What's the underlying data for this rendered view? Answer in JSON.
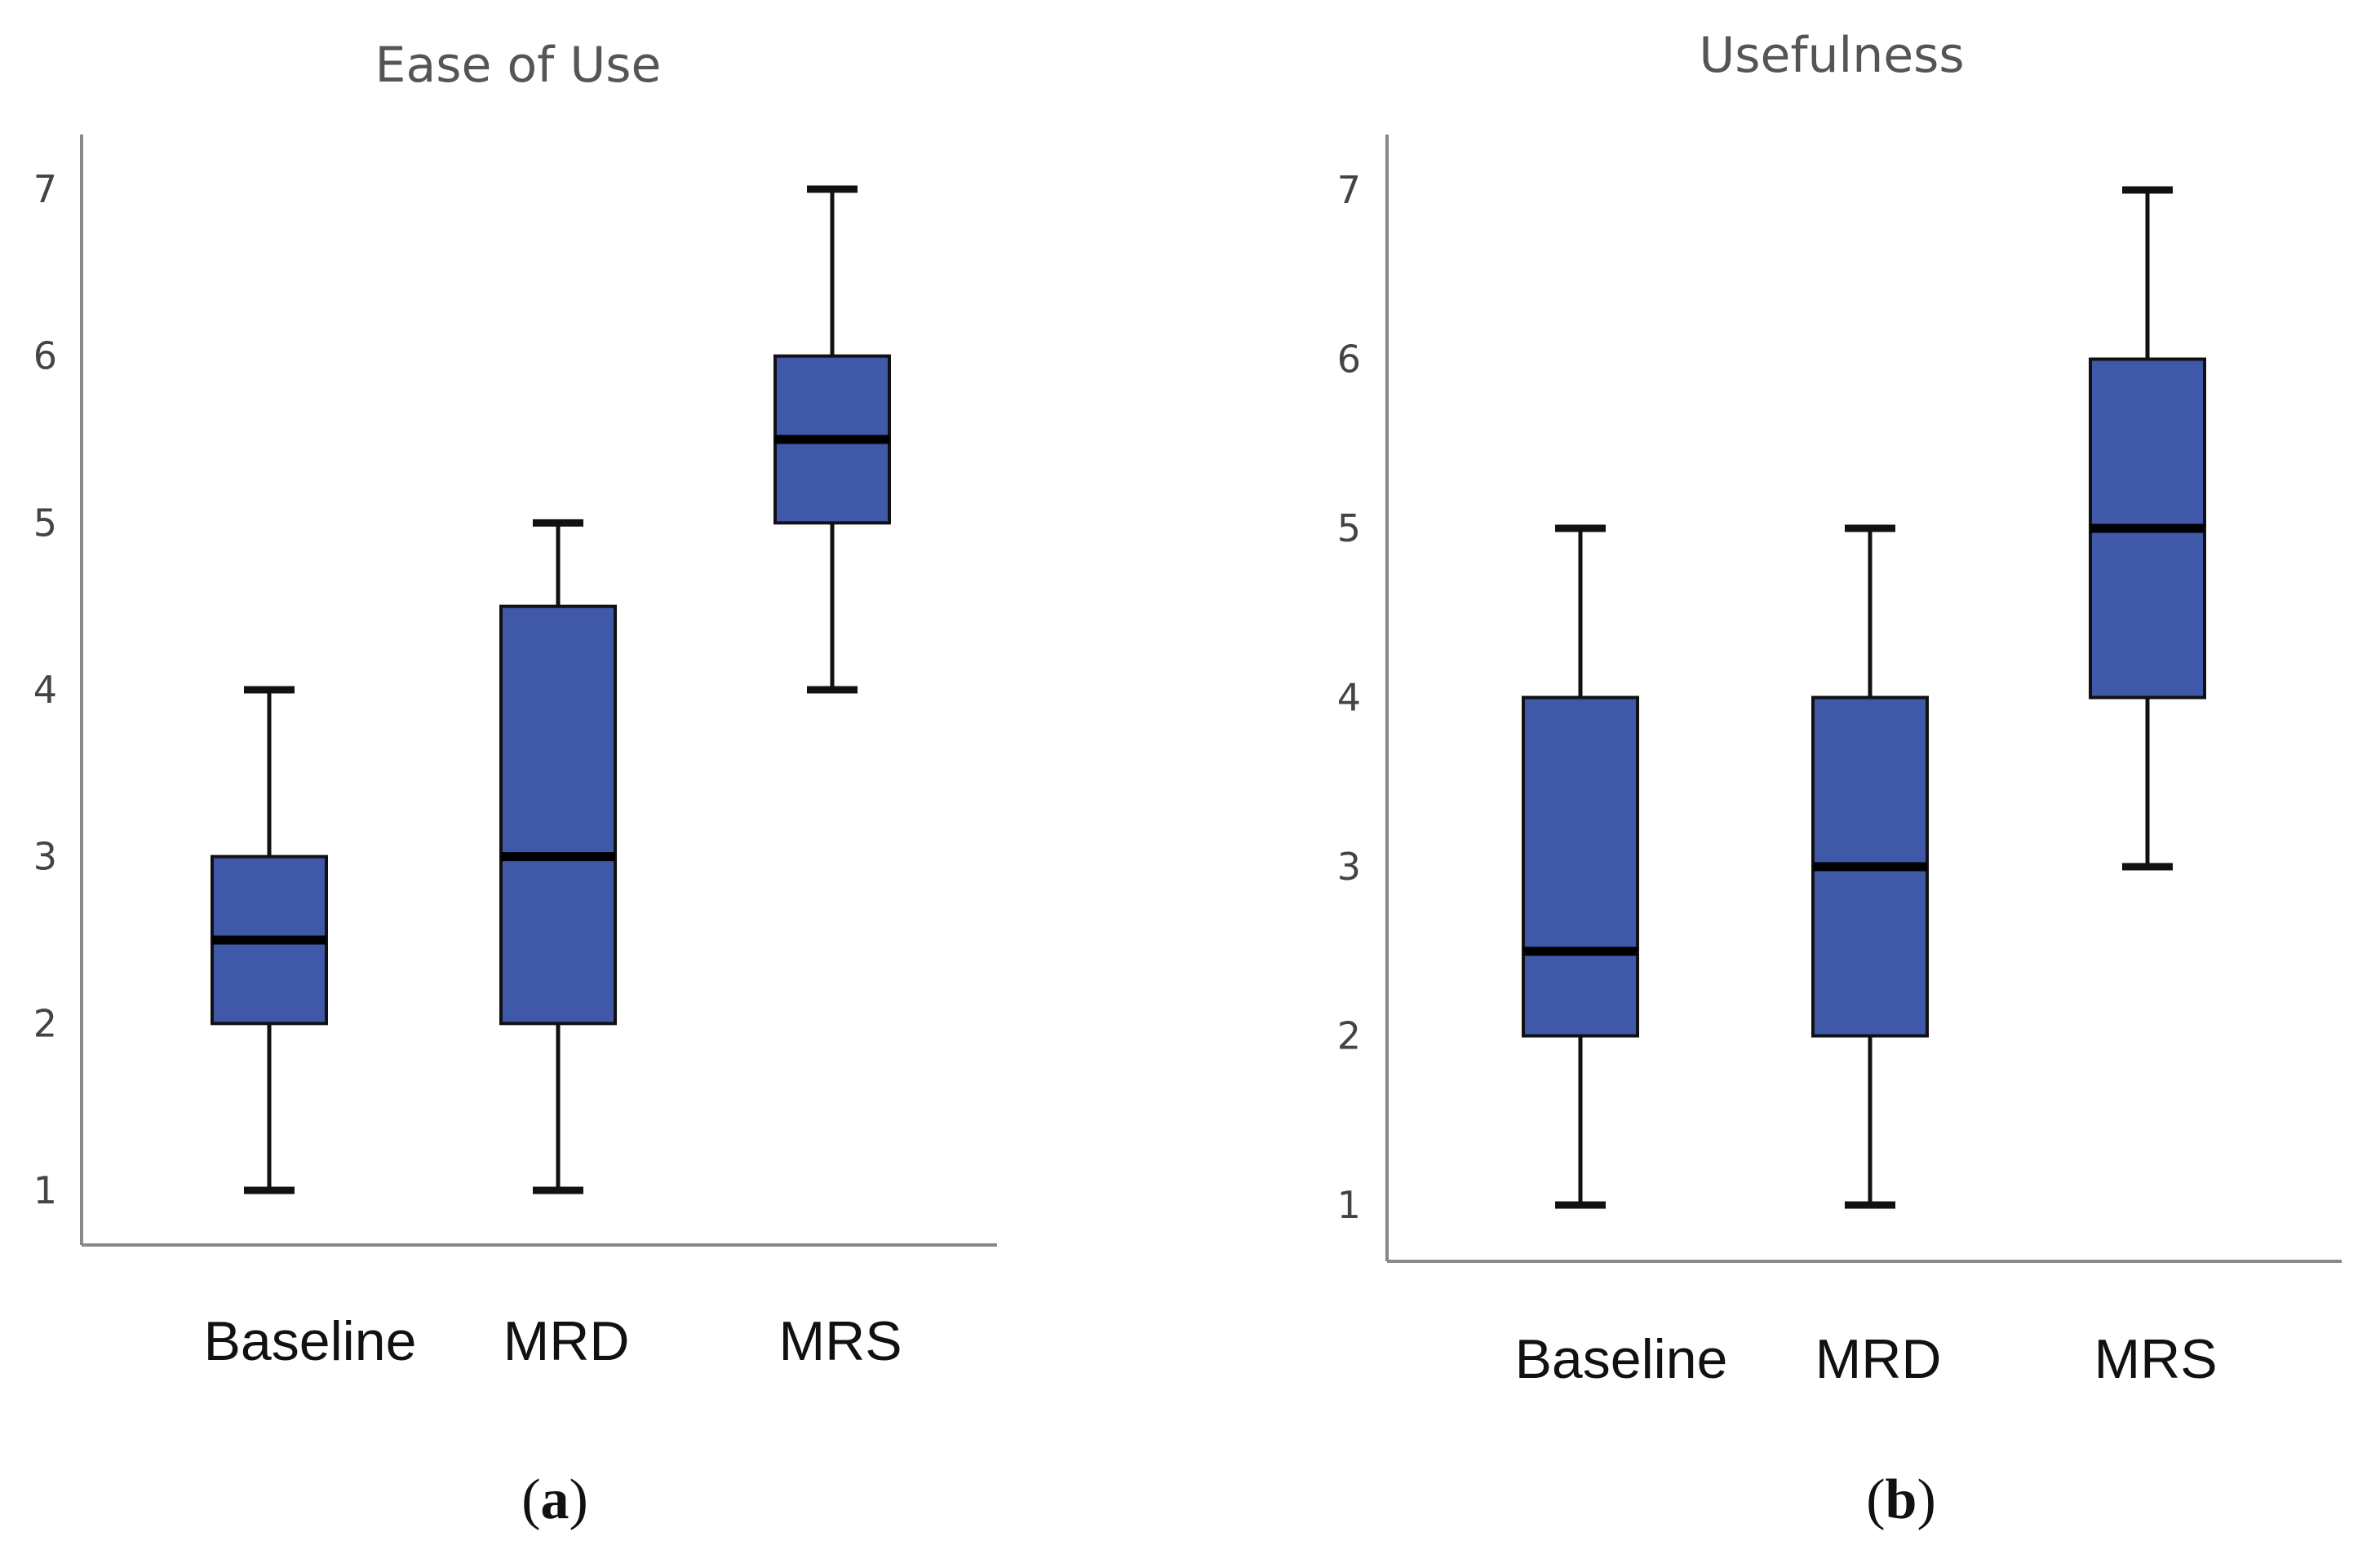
{
  "chart_data": [
    {
      "type": "boxplot",
      "title": "Ease of Use",
      "panel_label": "a",
      "categories": [
        "Baseline",
        "MRD",
        "MRS"
      ],
      "yticks": [
        1,
        2,
        3,
        4,
        5,
        6,
        7
      ],
      "ylim": [
        0.7,
        7.3
      ],
      "boxes": [
        {
          "category": "Baseline",
          "min": 1,
          "q1": 2,
          "median": 2.5,
          "q3": 3,
          "max": 4
        },
        {
          "category": "MRD",
          "min": 1,
          "q1": 2,
          "median": 3,
          "q3": 4.5,
          "max": 5
        },
        {
          "category": "MRS",
          "min": 4,
          "q1": 5,
          "median": 5.5,
          "q3": 6,
          "max": 7
        }
      ],
      "colors": {
        "box": "#3f58a8",
        "median": "#000000"
      }
    },
    {
      "type": "boxplot",
      "title": "Usefulness",
      "panel_label": "b",
      "categories": [
        "Baseline",
        "MRD",
        "MRS"
      ],
      "yticks": [
        1,
        2,
        3,
        4,
        5,
        6,
        7
      ],
      "ylim": [
        0.7,
        7.3
      ],
      "boxes": [
        {
          "category": "Baseline",
          "min": 1,
          "q1": 2,
          "median": 2.5,
          "q3": 4,
          "max": 5
        },
        {
          "category": "MRD",
          "min": 1,
          "q1": 2,
          "median": 3,
          "q3": 4,
          "max": 5
        },
        {
          "category": "MRS",
          "min": 3,
          "q1": 4,
          "median": 5,
          "q3": 6,
          "max": 7
        }
      ],
      "colors": {
        "box": "#3f58a8",
        "median": "#000000"
      }
    }
  ]
}
